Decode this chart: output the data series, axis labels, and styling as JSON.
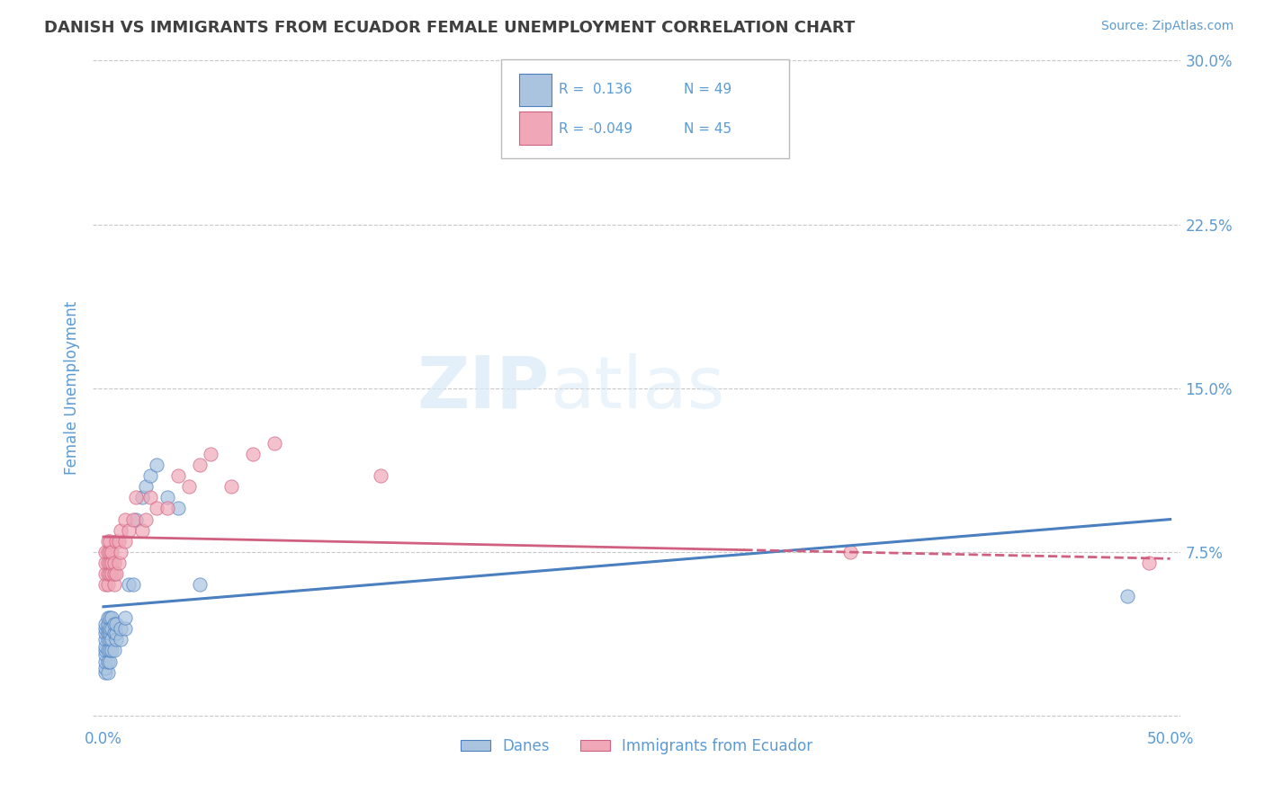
{
  "title": "DANISH VS IMMIGRANTS FROM ECUADOR FEMALE UNEMPLOYMENT CORRELATION CHART",
  "source": "Source: ZipAtlas.com",
  "ylabel": "Female Unemployment",
  "xlim": [
    -0.005,
    0.505
  ],
  "ylim": [
    -0.005,
    0.305
  ],
  "xtick_pos": [
    0.0,
    0.5
  ],
  "xtick_labels": [
    "0.0%",
    "50.0%"
  ],
  "yticks": [
    0.0,
    0.075,
    0.15,
    0.225,
    0.3
  ],
  "ytick_labels": [
    "",
    "7.5%",
    "15.0%",
    "22.5%",
    "30.0%"
  ],
  "r_danes": 0.136,
  "n_danes": 49,
  "r_ecuador": -0.049,
  "n_ecuador": 45,
  "color_danes": "#aac4e0",
  "color_ecuador": "#f0a8b8",
  "color_trend_danes": "#4a7fc0",
  "color_trend_ecuador": "#d06080",
  "color_axis_labels": "#5b9bd5",
  "color_title": "#404040",
  "color_grid": "#c8c8c8",
  "danes_x": [
    0.001,
    0.001,
    0.001,
    0.001,
    0.001,
    0.001,
    0.001,
    0.001,
    0.001,
    0.001,
    0.002,
    0.002,
    0.002,
    0.002,
    0.002,
    0.002,
    0.002,
    0.002,
    0.003,
    0.003,
    0.003,
    0.003,
    0.003,
    0.003,
    0.004,
    0.004,
    0.004,
    0.004,
    0.005,
    0.005,
    0.005,
    0.006,
    0.006,
    0.006,
    0.008,
    0.008,
    0.01,
    0.01,
    0.012,
    0.014,
    0.015,
    0.018,
    0.02,
    0.022,
    0.025,
    0.03,
    0.035,
    0.045,
    0.48
  ],
  "danes_y": [
    0.02,
    0.022,
    0.025,
    0.028,
    0.03,
    0.032,
    0.035,
    0.038,
    0.04,
    0.042,
    0.02,
    0.025,
    0.03,
    0.035,
    0.038,
    0.04,
    0.042,
    0.045,
    0.025,
    0.03,
    0.035,
    0.038,
    0.04,
    0.045,
    0.03,
    0.035,
    0.04,
    0.045,
    0.03,
    0.038,
    0.042,
    0.035,
    0.038,
    0.042,
    0.035,
    0.04,
    0.04,
    0.045,
    0.06,
    0.06,
    0.09,
    0.1,
    0.105,
    0.11,
    0.115,
    0.1,
    0.095,
    0.06,
    0.055
  ],
  "ecuador_x": [
    0.001,
    0.001,
    0.001,
    0.001,
    0.002,
    0.002,
    0.002,
    0.002,
    0.002,
    0.003,
    0.003,
    0.003,
    0.003,
    0.004,
    0.004,
    0.004,
    0.005,
    0.005,
    0.005,
    0.006,
    0.006,
    0.007,
    0.007,
    0.008,
    0.008,
    0.01,
    0.01,
    0.012,
    0.014,
    0.015,
    0.018,
    0.02,
    0.022,
    0.025,
    0.03,
    0.035,
    0.04,
    0.045,
    0.05,
    0.06,
    0.07,
    0.08,
    0.13,
    0.35,
    0.49
  ],
  "ecuador_y": [
    0.06,
    0.065,
    0.07,
    0.075,
    0.06,
    0.065,
    0.07,
    0.075,
    0.08,
    0.065,
    0.07,
    0.075,
    0.08,
    0.065,
    0.07,
    0.075,
    0.06,
    0.065,
    0.07,
    0.065,
    0.08,
    0.07,
    0.08,
    0.075,
    0.085,
    0.08,
    0.09,
    0.085,
    0.09,
    0.1,
    0.085,
    0.09,
    0.1,
    0.095,
    0.095,
    0.11,
    0.105,
    0.115,
    0.12,
    0.105,
    0.12,
    0.125,
    0.11,
    0.075,
    0.07
  ],
  "watermark_zip": "ZIP",
  "watermark_atlas": "atlas"
}
